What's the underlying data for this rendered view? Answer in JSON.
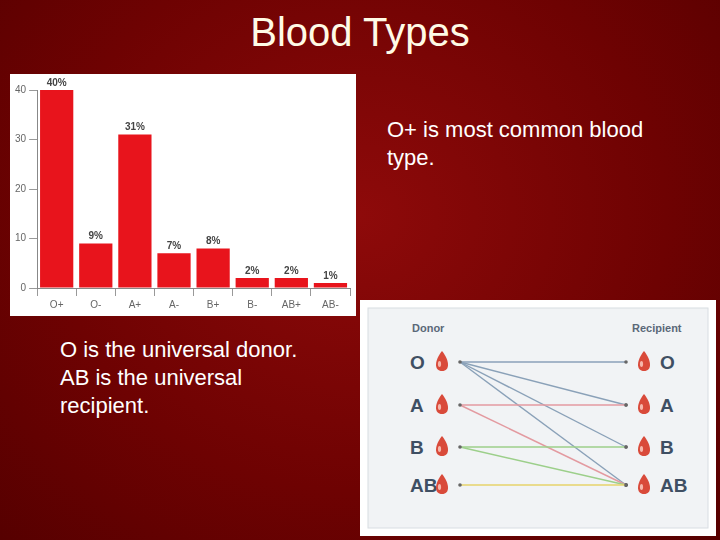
{
  "title": "Blood Types",
  "chart_data": {
    "type": "bar",
    "categories": [
      "O+",
      "O-",
      "A+",
      "A-",
      "B+",
      "B-",
      "AB+",
      "AB-"
    ],
    "values": [
      40,
      9,
      31,
      7,
      8,
      2,
      2,
      1
    ],
    "value_labels": [
      "40%",
      "9%",
      "31%",
      "7%",
      "8%",
      "2%",
      "2%",
      "1%"
    ],
    "color": "#e8141c",
    "ylim": [
      0,
      40
    ],
    "yticks": [
      0,
      10,
      20,
      30,
      40
    ],
    "grid": false,
    "data_labels": true
  },
  "note": "O+ is most common blood type.",
  "statements": [
    "O is the universal donor.",
    "AB is the universal recipient."
  ],
  "diagram": {
    "donor_header": "Donor",
    "recipient_header": "Recipient",
    "donors": [
      "O",
      "A",
      "B",
      "AB"
    ],
    "recipients": [
      "O",
      "A",
      "B",
      "AB"
    ],
    "edges": [
      {
        "from": "O",
        "to": "O"
      },
      {
        "from": "O",
        "to": "A"
      },
      {
        "from": "O",
        "to": "B"
      },
      {
        "from": "O",
        "to": "AB"
      },
      {
        "from": "A",
        "to": "A"
      },
      {
        "from": "A",
        "to": "AB"
      },
      {
        "from": "B",
        "to": "B"
      },
      {
        "from": "B",
        "to": "AB"
      },
      {
        "from": "AB",
        "to": "AB"
      }
    ]
  }
}
